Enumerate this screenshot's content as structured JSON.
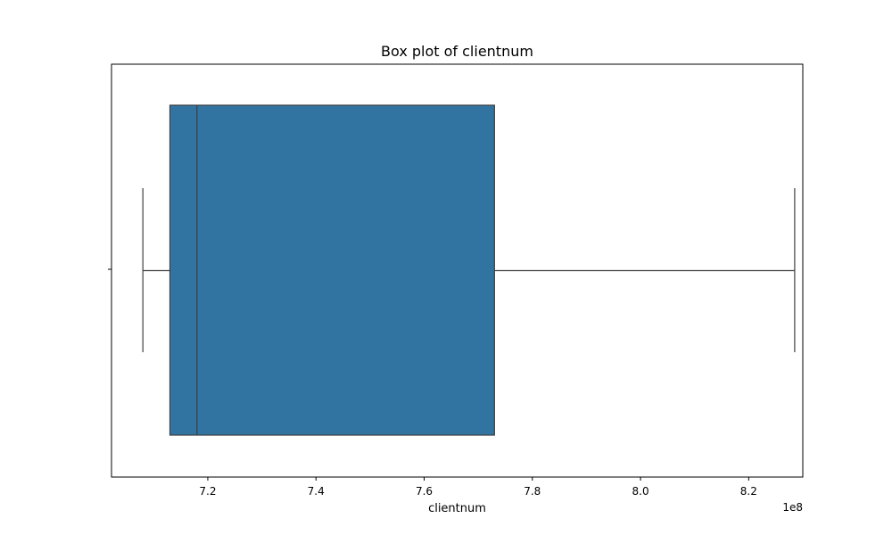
{
  "chart_data": {
    "type": "box",
    "title": "Box plot of clientnum",
    "xlabel": "clientnum",
    "ylabel": "",
    "x_offset_label": "1e8",
    "x_scale_factor": 100000000,
    "xlim": [
      7.022,
      8.3
    ],
    "xticks": [
      7.2,
      7.4,
      7.6,
      7.8,
      8.0,
      8.2
    ],
    "xtick_labels": [
      "7.2",
      "7.4",
      "7.6",
      "7.8",
      "8.0",
      "8.2"
    ],
    "grid": false,
    "box": {
      "whisker_low": 7.08,
      "q1": 7.13,
      "median": 7.18,
      "q3": 7.73,
      "whisker_high": 8.285
    },
    "colors": {
      "box_fill": "#3274A1",
      "line": "#3f3f3f",
      "axes": "#000000"
    }
  }
}
